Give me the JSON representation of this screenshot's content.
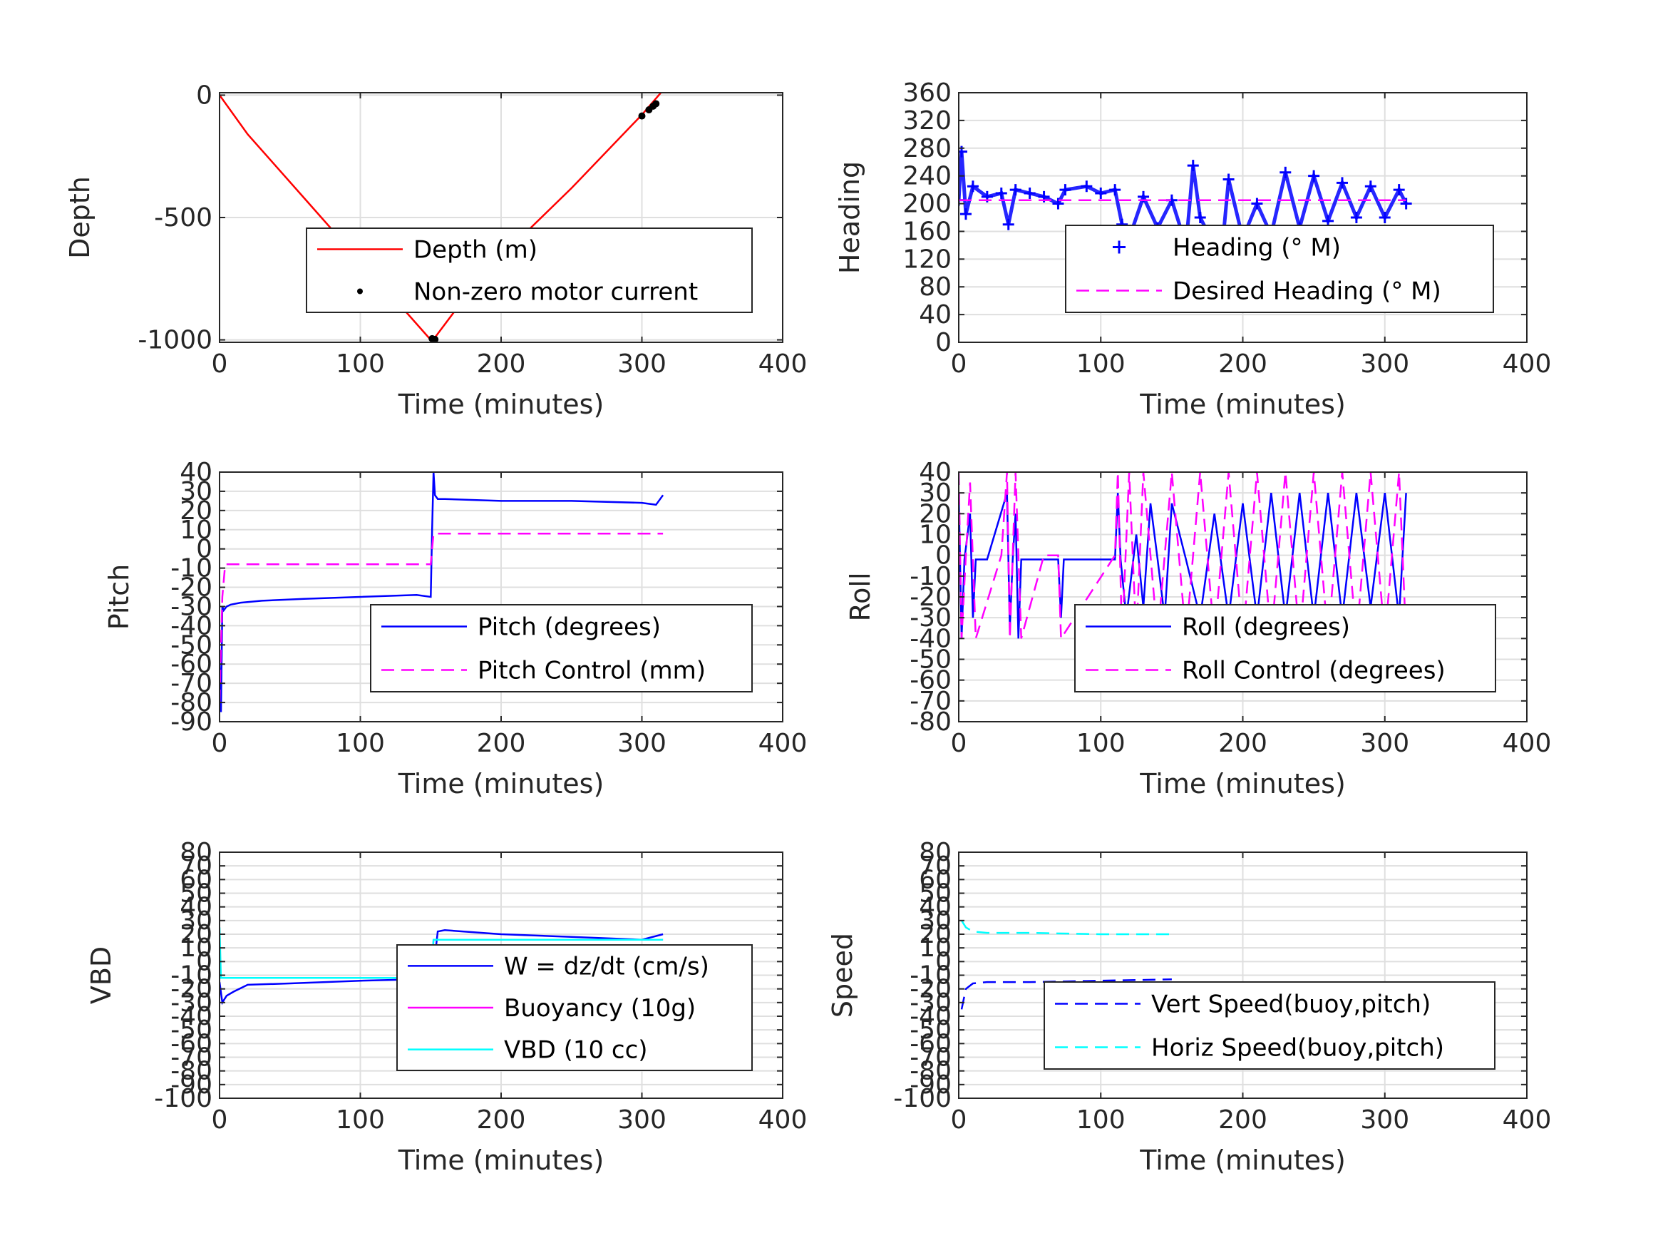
{
  "chart_data": [
    {
      "id": "depth",
      "type": "line",
      "xlabel": "Time (minutes)",
      "ylabel": "Depth",
      "xlim": [
        0,
        400
      ],
      "ylim": [
        -1010,
        10
      ],
      "xticks": [
        0,
        100,
        200,
        300,
        400
      ],
      "yticks": [
        0,
        -500,
        -1000
      ],
      "grid": true,
      "legend": "center-right",
      "series": [
        {
          "name": "Depth (m)",
          "color": "#ff0000",
          "style": "solid",
          "x": [
            0,
            20,
            60,
            100,
            130,
            150,
            152,
            170,
            200,
            250,
            300,
            315
          ],
          "y": [
            0,
            -160,
            -420,
            -680,
            -870,
            -1000,
            -998,
            -860,
            -660,
            -380,
            -80,
            20
          ]
        },
        {
          "name": "Non-zero motor current",
          "color": "#000000",
          "style": "dots",
          "x": [
            151,
            152,
            153,
            300,
            305,
            308,
            310
          ],
          "y": [
            -995,
            -1000,
            -998,
            -85,
            -60,
            -45,
            -35
          ]
        }
      ]
    },
    {
      "id": "heading",
      "type": "scatter",
      "xlabel": "Time (minutes)",
      "ylabel": "Heading",
      "xlim": [
        0,
        400
      ],
      "ylim": [
        0,
        360
      ],
      "xticks": [
        0,
        100,
        200,
        300,
        400
      ],
      "yticks": [
        0,
        40,
        80,
        120,
        160,
        200,
        240,
        280,
        320,
        360
      ],
      "grid": true,
      "legend": "lower-right",
      "series": [
        {
          "name": "Heading (° M)",
          "color": "#0000ff",
          "style": "plus",
          "x": [
            0,
            2,
            5,
            10,
            20,
            30,
            35,
            40,
            50,
            60,
            70,
            75,
            90,
            100,
            110,
            115,
            120,
            130,
            140,
            150,
            160,
            165,
            170,
            180,
            185,
            190,
            200,
            210,
            220,
            230,
            240,
            250,
            260,
            270,
            280,
            290,
            300,
            310,
            315
          ],
          "y": [
            205,
            275,
            185,
            225,
            210,
            215,
            170,
            220,
            215,
            210,
            200,
            220,
            225,
            215,
            220,
            170,
            150,
            210,
            165,
            205,
            140,
            255,
            180,
            140,
            125,
            235,
            150,
            200,
            155,
            245,
            165,
            240,
            175,
            230,
            180,
            225,
            180,
            220,
            200
          ]
        },
        {
          "name": "Desired Heading (° M)",
          "color": "#ff00ff",
          "style": "dashed",
          "x": [
            0,
            315
          ],
          "y": [
            205,
            205
          ]
        }
      ]
    },
    {
      "id": "pitch",
      "type": "line",
      "xlabel": "Time (minutes)",
      "ylabel": "Pitch",
      "xlim": [
        0,
        400
      ],
      "ylim": [
        -90,
        40
      ],
      "xticks": [
        0,
        100,
        200,
        300,
        400
      ],
      "yticks": [
        -90,
        -80,
        -70,
        -60,
        -50,
        -40,
        -30,
        -20,
        -10,
        0,
        10,
        20,
        30,
        40
      ],
      "grid": true,
      "legend": "lower-right",
      "series": [
        {
          "name": "Pitch (degrees)",
          "color": "#0000ff",
          "style": "solid",
          "x": [
            0,
            1,
            2,
            3,
            5,
            8,
            15,
            30,
            60,
            100,
            140,
            150,
            151,
            152,
            153,
            155,
            160,
            200,
            250,
            300,
            310,
            315
          ],
          "y": [
            -60,
            -85,
            -30,
            -32,
            -30,
            -29,
            -28,
            -27,
            -26,
            -25,
            -24,
            -25,
            10,
            40,
            28,
            26,
            26,
            25,
            25,
            24,
            23,
            28
          ]
        },
        {
          "name": "Pitch Control (mm)",
          "color": "#ff00ff",
          "style": "dashed",
          "x": [
            0,
            2,
            4,
            150,
            151,
            152,
            315
          ],
          "y": [
            -80,
            -25,
            -8,
            -8,
            0,
            8,
            8
          ]
        }
      ]
    },
    {
      "id": "roll",
      "type": "line",
      "xlabel": "Time (minutes)",
      "ylabel": "Roll",
      "xlim": [
        0,
        400
      ],
      "ylim": [
        -80,
        40
      ],
      "xticks": [
        0,
        100,
        200,
        300,
        400
      ],
      "yticks": [
        -80,
        -70,
        -60,
        -50,
        -40,
        -30,
        -20,
        -10,
        0,
        10,
        20,
        30,
        40
      ],
      "grid": true,
      "legend": "lower-right",
      "series": [
        {
          "name": "Roll (degrees)",
          "color": "#0000ff",
          "style": "solid",
          "x": [
            0,
            2,
            4,
            8,
            10,
            12,
            20,
            34,
            36,
            38,
            40,
            42,
            44,
            70,
            72,
            74,
            76,
            110,
            112,
            114,
            118,
            125,
            130,
            135,
            140,
            145,
            150,
            160,
            170,
            180,
            190,
            200,
            210,
            220,
            230,
            240,
            250,
            260,
            270,
            280,
            290,
            300,
            310,
            315
          ],
          "y": [
            30,
            -40,
            -2,
            20,
            -30,
            -2,
            -2,
            30,
            -35,
            -2,
            20,
            -40,
            -2,
            -2,
            -30,
            -2,
            -2,
            -2,
            30,
            -2,
            -30,
            10,
            -25,
            25,
            -2,
            -30,
            25,
            -2,
            -30,
            20,
            -30,
            25,
            -30,
            30,
            -30,
            30,
            -30,
            30,
            -30,
            30,
            -25,
            30,
            -30,
            30
          ]
        },
        {
          "name": "Roll Control (degrees)",
          "color": "#ff00ff",
          "style": "dashed",
          "x": [
            0,
            2,
            5,
            8,
            12,
            30,
            34,
            36,
            40,
            44,
            60,
            70,
            72,
            110,
            112,
            115,
            120,
            125,
            130,
            140,
            150,
            160,
            170,
            180,
            190,
            200,
            210,
            220,
            230,
            240,
            250,
            260,
            270,
            280,
            290,
            300,
            310,
            315
          ],
          "y": [
            40,
            -40,
            0,
            35,
            -40,
            0,
            40,
            -40,
            40,
            -40,
            0,
            0,
            -40,
            0,
            40,
            -40,
            40,
            -40,
            40,
            -40,
            40,
            -40,
            40,
            -40,
            40,
            -40,
            40,
            -40,
            40,
            -40,
            40,
            -40,
            40,
            -40,
            40,
            -40,
            40,
            -40
          ]
        }
      ]
    },
    {
      "id": "vbd",
      "type": "line",
      "xlabel": "Time (minutes)",
      "ylabel": "VBD",
      "xlim": [
        0,
        400
      ],
      "ylim": [
        -100,
        80
      ],
      "xticks": [
        0,
        100,
        200,
        300,
        400
      ],
      "yticks": [
        -100,
        -90,
        -80,
        -70,
        -60,
        -50,
        -40,
        -30,
        -20,
        -10,
        0,
        10,
        20,
        30,
        40,
        50,
        60,
        70,
        80
      ],
      "grid": true,
      "legend": "center-right",
      "series": [
        {
          "name": "W = dz/dt (cm/s)",
          "color": "#0000ff",
          "style": "solid",
          "x": [
            0,
            2,
            5,
            10,
            20,
            50,
            100,
            140,
            150,
            152,
            155,
            160,
            200,
            250,
            300,
            315
          ],
          "y": [
            -15,
            -30,
            -25,
            -22,
            -17,
            -16,
            -14,
            -13,
            -12,
            -5,
            22,
            23,
            20,
            18,
            16,
            20
          ]
        },
        {
          "name": "Buoyancy (10g)",
          "color": "#ff00ff",
          "style": "solid",
          "x": [
            0,
            150,
            152,
            315
          ],
          "y": [
            -12,
            -12,
            16,
            16
          ]
        },
        {
          "name": "VBD (10 cc)",
          "color": "#00ffff",
          "style": "solid",
          "x": [
            0,
            1,
            3,
            150,
            152,
            315
          ],
          "y": [
            25,
            -12,
            -12,
            -12,
            16,
            16
          ]
        }
      ]
    },
    {
      "id": "speed",
      "type": "line",
      "xlabel": "Time (minutes)",
      "ylabel": "Speed",
      "xlim": [
        0,
        400
      ],
      "ylim": [
        -100,
        80
      ],
      "xticks": [
        0,
        100,
        200,
        300,
        400
      ],
      "yticks": [
        -100,
        -90,
        -80,
        -70,
        -60,
        -50,
        -40,
        -30,
        -20,
        -10,
        0,
        10,
        20,
        30,
        40,
        50,
        60,
        70,
        80
      ],
      "grid": true,
      "legend": "lower-right",
      "series": [
        {
          "name": "Vert Speed(buoy,pitch)",
          "color": "#0000ff",
          "style": "dashed",
          "x": [
            2,
            5,
            10,
            20,
            50,
            100,
            150
          ],
          "y": [
            -35,
            -20,
            -16,
            -15,
            -15,
            -14,
            -13
          ]
        },
        {
          "name": "Horiz Speed(buoy,pitch)",
          "color": "#00ffff",
          "style": "dashed",
          "x": [
            2,
            5,
            10,
            20,
            50,
            100,
            150
          ],
          "y": [
            30,
            25,
            22,
            21,
            21,
            20,
            20
          ]
        }
      ]
    }
  ]
}
